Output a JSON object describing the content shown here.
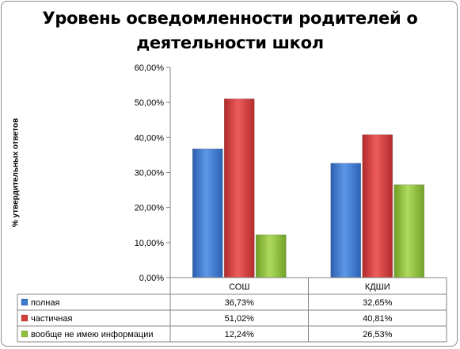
{
  "chart_data": {
    "type": "bar",
    "title": "Уровень осведомленности родителей о деятельности школ",
    "title_lines": [
      "Уровень осведомленности родителей о",
      "деятельности школ"
    ],
    "ylabel": "% утвердительных ответов",
    "xlabel": "",
    "categories": [
      "СОШ",
      "КДШИ"
    ],
    "ylim": [
      0,
      60
    ],
    "ytick_values": [
      0,
      10,
      20,
      30,
      40,
      50,
      60
    ],
    "ytick_labels": [
      "0,00%",
      "10,00%",
      "20,00%",
      "30,00%",
      "40,00%",
      "50,00%",
      "60,00%"
    ],
    "grid": false,
    "legend": "data-table-below",
    "series": [
      {
        "name": "полная",
        "color": "#3b78cf",
        "values": [
          36.73,
          32.65
        ],
        "labels": [
          "36,73%",
          "32,65%"
        ]
      },
      {
        "name": "частичная",
        "color": "#d33b3b",
        "values": [
          51.02,
          40.81
        ],
        "labels": [
          "51,02%",
          "40,81%"
        ]
      },
      {
        "name": "вообще не имею информации",
        "color": "#8fc23a",
        "values": [
          12.24,
          26.53
        ],
        "labels": [
          "12,24%",
          "26,53%"
        ]
      }
    ]
  }
}
